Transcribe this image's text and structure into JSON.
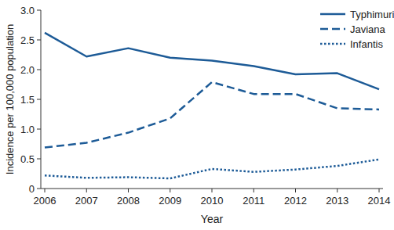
{
  "chart_data": {
    "type": "line",
    "x_label": "Year",
    "y_label": "Incidence per 100,000 population",
    "categories": [
      "2006",
      "2007",
      "2008",
      "2009",
      "2010",
      "2011",
      "2012",
      "2013",
      "2014"
    ],
    "series": [
      {
        "name": "Typhimurium",
        "color": "#1d5b97",
        "line_style": "solid",
        "values": [
          2.62,
          2.22,
          2.36,
          2.2,
          2.15,
          2.06,
          1.92,
          1.94,
          1.67
        ]
      },
      {
        "name": "Javiana",
        "color": "#1d5b97",
        "line_style": "dashed",
        "values": [
          0.69,
          0.77,
          0.94,
          1.18,
          1.79,
          1.59,
          1.59,
          1.35,
          1.33
        ]
      },
      {
        "name": "Infantis",
        "color": "#1d5b97",
        "line_style": "dotted",
        "values": [
          0.22,
          0.18,
          0.19,
          0.17,
          0.33,
          0.28,
          0.32,
          0.38,
          0.49
        ]
      }
    ],
    "ylim": [
      0,
      3
    ],
    "yticks": [
      0,
      0.5,
      {
        "value": 1,
        "label": "1.0"
      },
      1.5,
      {
        "value": 2,
        "label": "2.0"
      },
      2.5,
      {
        "value": 3,
        "label": "3.0"
      }
    ],
    "grid": false,
    "legend": "upper-right"
  }
}
